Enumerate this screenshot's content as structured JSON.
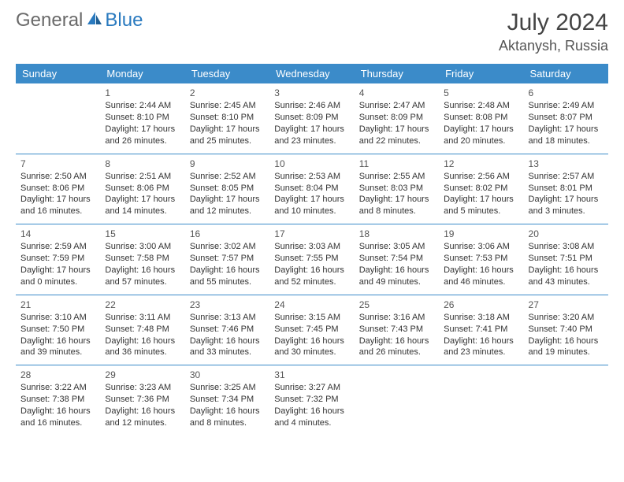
{
  "logo": {
    "part1": "General",
    "part2": "Blue"
  },
  "title": "July 2024",
  "location": "Aktanysh, Russia",
  "colors": {
    "header_bg": "#3b8bc9",
    "header_text": "#ffffff",
    "rule": "#3b8bc9",
    "logo_gray": "#6a6a6a",
    "logo_blue": "#2a7abf"
  },
  "weekdays": [
    "Sunday",
    "Monday",
    "Tuesday",
    "Wednesday",
    "Thursday",
    "Friday",
    "Saturday"
  ],
  "start_weekday_index": 1,
  "days": [
    {
      "n": 1,
      "sunrise": "2:44 AM",
      "sunset": "8:10 PM",
      "dl_h": 17,
      "dl_m": 26
    },
    {
      "n": 2,
      "sunrise": "2:45 AM",
      "sunset": "8:10 PM",
      "dl_h": 17,
      "dl_m": 25
    },
    {
      "n": 3,
      "sunrise": "2:46 AM",
      "sunset": "8:09 PM",
      "dl_h": 17,
      "dl_m": 23
    },
    {
      "n": 4,
      "sunrise": "2:47 AM",
      "sunset": "8:09 PM",
      "dl_h": 17,
      "dl_m": 22
    },
    {
      "n": 5,
      "sunrise": "2:48 AM",
      "sunset": "8:08 PM",
      "dl_h": 17,
      "dl_m": 20
    },
    {
      "n": 6,
      "sunrise": "2:49 AM",
      "sunset": "8:07 PM",
      "dl_h": 17,
      "dl_m": 18
    },
    {
      "n": 7,
      "sunrise": "2:50 AM",
      "sunset": "8:06 PM",
      "dl_h": 17,
      "dl_m": 16
    },
    {
      "n": 8,
      "sunrise": "2:51 AM",
      "sunset": "8:06 PM",
      "dl_h": 17,
      "dl_m": 14
    },
    {
      "n": 9,
      "sunrise": "2:52 AM",
      "sunset": "8:05 PM",
      "dl_h": 17,
      "dl_m": 12
    },
    {
      "n": 10,
      "sunrise": "2:53 AM",
      "sunset": "8:04 PM",
      "dl_h": 17,
      "dl_m": 10
    },
    {
      "n": 11,
      "sunrise": "2:55 AM",
      "sunset": "8:03 PM",
      "dl_h": 17,
      "dl_m": 8
    },
    {
      "n": 12,
      "sunrise": "2:56 AM",
      "sunset": "8:02 PM",
      "dl_h": 17,
      "dl_m": 5
    },
    {
      "n": 13,
      "sunrise": "2:57 AM",
      "sunset": "8:01 PM",
      "dl_h": 17,
      "dl_m": 3
    },
    {
      "n": 14,
      "sunrise": "2:59 AM",
      "sunset": "7:59 PM",
      "dl_h": 17,
      "dl_m": 0
    },
    {
      "n": 15,
      "sunrise": "3:00 AM",
      "sunset": "7:58 PM",
      "dl_h": 16,
      "dl_m": 57
    },
    {
      "n": 16,
      "sunrise": "3:02 AM",
      "sunset": "7:57 PM",
      "dl_h": 16,
      "dl_m": 55
    },
    {
      "n": 17,
      "sunrise": "3:03 AM",
      "sunset": "7:55 PM",
      "dl_h": 16,
      "dl_m": 52
    },
    {
      "n": 18,
      "sunrise": "3:05 AM",
      "sunset": "7:54 PM",
      "dl_h": 16,
      "dl_m": 49
    },
    {
      "n": 19,
      "sunrise": "3:06 AM",
      "sunset": "7:53 PM",
      "dl_h": 16,
      "dl_m": 46
    },
    {
      "n": 20,
      "sunrise": "3:08 AM",
      "sunset": "7:51 PM",
      "dl_h": 16,
      "dl_m": 43
    },
    {
      "n": 21,
      "sunrise": "3:10 AM",
      "sunset": "7:50 PM",
      "dl_h": 16,
      "dl_m": 39
    },
    {
      "n": 22,
      "sunrise": "3:11 AM",
      "sunset": "7:48 PM",
      "dl_h": 16,
      "dl_m": 36
    },
    {
      "n": 23,
      "sunrise": "3:13 AM",
      "sunset": "7:46 PM",
      "dl_h": 16,
      "dl_m": 33
    },
    {
      "n": 24,
      "sunrise": "3:15 AM",
      "sunset": "7:45 PM",
      "dl_h": 16,
      "dl_m": 30
    },
    {
      "n": 25,
      "sunrise": "3:16 AM",
      "sunset": "7:43 PM",
      "dl_h": 16,
      "dl_m": 26
    },
    {
      "n": 26,
      "sunrise": "3:18 AM",
      "sunset": "7:41 PM",
      "dl_h": 16,
      "dl_m": 23
    },
    {
      "n": 27,
      "sunrise": "3:20 AM",
      "sunset": "7:40 PM",
      "dl_h": 16,
      "dl_m": 19
    },
    {
      "n": 28,
      "sunrise": "3:22 AM",
      "sunset": "7:38 PM",
      "dl_h": 16,
      "dl_m": 16
    },
    {
      "n": 29,
      "sunrise": "3:23 AM",
      "sunset": "7:36 PM",
      "dl_h": 16,
      "dl_m": 12
    },
    {
      "n": 30,
      "sunrise": "3:25 AM",
      "sunset": "7:34 PM",
      "dl_h": 16,
      "dl_m": 8
    },
    {
      "n": 31,
      "sunrise": "3:27 AM",
      "sunset": "7:32 PM",
      "dl_h": 16,
      "dl_m": 4
    }
  ]
}
